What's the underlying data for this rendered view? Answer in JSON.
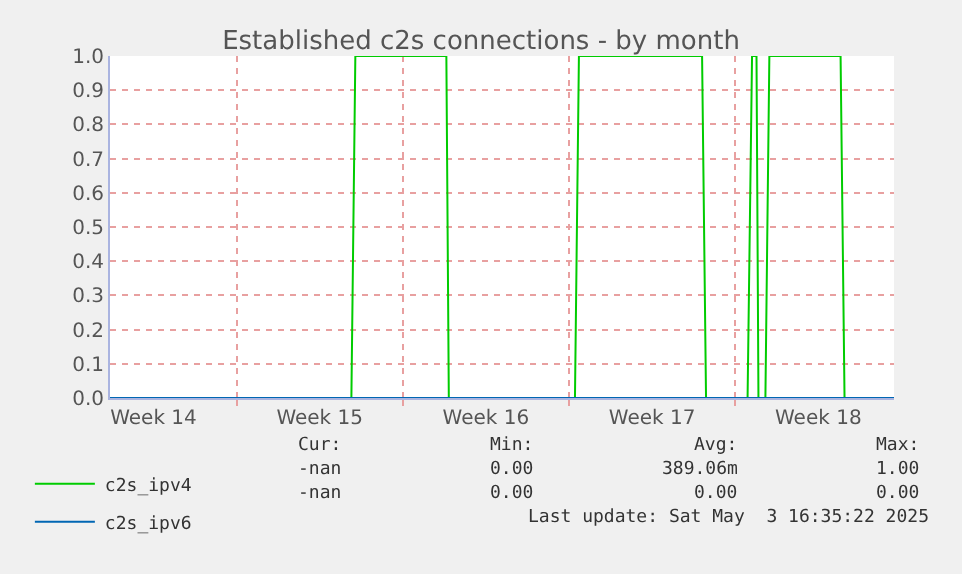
{
  "chart_data": {
    "type": "line",
    "title": "Established c2s connections - by month",
    "xlim": [
      "2025-03-31T16:00",
      "2025-05-03T16:30"
    ],
    "xticks": [
      {
        "value": "2025-04-02T12:00",
        "label": "Week 14"
      },
      {
        "value": "2025-04-06",
        "label": null
      },
      {
        "value": "2025-04-09T12:00",
        "label": "Week 15"
      },
      {
        "value": "2025-04-13",
        "label": null
      },
      {
        "value": "2025-04-16T12:00",
        "label": "Week 16"
      },
      {
        "value": "2025-04-20",
        "label": null
      },
      {
        "value": "2025-04-23T12:00",
        "label": "Week 17"
      },
      {
        "value": "2025-04-27",
        "label": null
      },
      {
        "value": "2025-04-30T12:00",
        "label": "Week 18"
      }
    ],
    "ylim": [
      0,
      1
    ],
    "yticks": [
      {
        "value": 0,
        "label": "0.0"
      },
      {
        "value": 0.1,
        "label": "0.1"
      },
      {
        "value": 0.2,
        "label": "0.2"
      },
      {
        "value": 0.3,
        "label": "0.3"
      },
      {
        "value": 0.4,
        "label": "0.4"
      },
      {
        "value": 0.5,
        "label": "0.5"
      },
      {
        "value": 0.6,
        "label": "0.6"
      },
      {
        "value": 0.7,
        "label": "0.7"
      },
      {
        "value": 0.8,
        "label": "0.8"
      },
      {
        "value": 0.9,
        "label": "0.9"
      },
      {
        "value": 1,
        "label": "1.0"
      }
    ],
    "grid": true,
    "legend": "bottom",
    "marker": "none",
    "line_style": "solid",
    "series": [
      {
        "name": "c2s_ipv4",
        "color": "#00cc00",
        "x": [
          "2025-03-31T16:00",
          "2025-04-10T20:00",
          "2025-04-11T00:00",
          "2025-04-14T20:00",
          "2025-04-14T22:30",
          "2025-04-20T06:00",
          "2025-04-20T10:00",
          "2025-04-25T14:30",
          "2025-04-25T18:30",
          "2025-04-27T12:30",
          "2025-04-27T17:00",
          "2025-04-27T21:30",
          "2025-04-27T23:30",
          "2025-04-28T06:30",
          "2025-04-28T10:30",
          "2025-05-01T10:30",
          "2025-05-01T14:30",
          "2025-05-03T16:30"
        ],
        "values": [
          0,
          0,
          1,
          1,
          0,
          0,
          1,
          1,
          0,
          0,
          1,
          1,
          0,
          0,
          1,
          1,
          0,
          0
        ]
      },
      {
        "name": "c2s_ipv6",
        "color": "#0066b3",
        "x": [
          "2025-03-31T16:00",
          "2025-05-03T16:30"
        ],
        "values": [
          0,
          0
        ]
      }
    ],
    "annotations": [
      "Cur:",
      "Min:",
      "Avg:",
      "Max:",
      "-nan",
      "0.00",
      "389.06m",
      "1.00",
      "-nan",
      "0.00",
      "0.00",
      "0.00",
      "Last update: Sat May  3 16:35:22 2025"
    ]
  }
}
